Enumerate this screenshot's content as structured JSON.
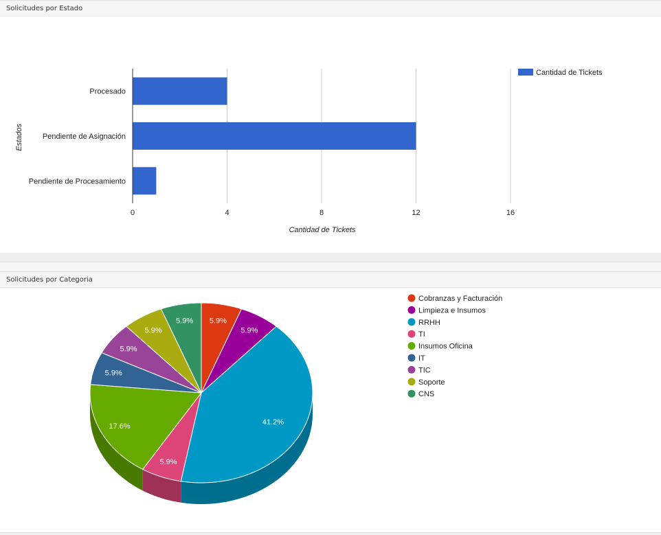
{
  "panels": {
    "estado": {
      "title": "Solicitudes por Estado"
    },
    "categoria": {
      "title": "Solicitudes por Categoria"
    }
  },
  "colors": {
    "bar": "#3366cc",
    "axis": "#333333",
    "grid": "#cccccc"
  },
  "chart_data": [
    {
      "type": "bar",
      "orientation": "horizontal",
      "categories": [
        "Procesado",
        "Pendiente de Asignación",
        "Pendiente de Procesamiento"
      ],
      "series": [
        {
          "name": "Cantidad de Tickets",
          "values": [
            4,
            12,
            1
          ],
          "color": "#3366cc"
        }
      ],
      "xlabel": "Cantidad de Tickets",
      "ylabel": "Estados",
      "xlim": [
        0,
        16
      ],
      "xticks": [
        0,
        4,
        8,
        12,
        16
      ],
      "grid": true,
      "legend": "right"
    },
    {
      "type": "pie",
      "style": "3d",
      "slices": [
        {
          "label": "Cobranzas y Facturación",
          "value": 1,
          "percent_label": "5.9%",
          "color": "#dc3912"
        },
        {
          "label": "Limpieza e Insumos",
          "value": 1,
          "percent_label": "5.9%",
          "color": "#990099"
        },
        {
          "label": "RRHH",
          "value": 7,
          "percent_label": "41.2%",
          "color": "#0099c6"
        },
        {
          "label": "TI",
          "value": 1,
          "percent_label": "5.9%",
          "color": "#dd4477"
        },
        {
          "label": "Insumos Oficina",
          "value": 3,
          "percent_label": "17.6%",
          "color": "#66aa00"
        },
        {
          "label": "IT",
          "value": 1,
          "percent_label": "5.9%",
          "color": "#316395"
        },
        {
          "label": "TIC",
          "value": 1,
          "percent_label": "5.9%",
          "color": "#994499"
        },
        {
          "label": "Soporte",
          "value": 1,
          "percent_label": "5.9%",
          "color": "#aaaa11"
        },
        {
          "label": "CNS",
          "value": 1,
          "percent_label": "5.9%",
          "color": "#329262"
        }
      ],
      "legend": "right"
    }
  ]
}
